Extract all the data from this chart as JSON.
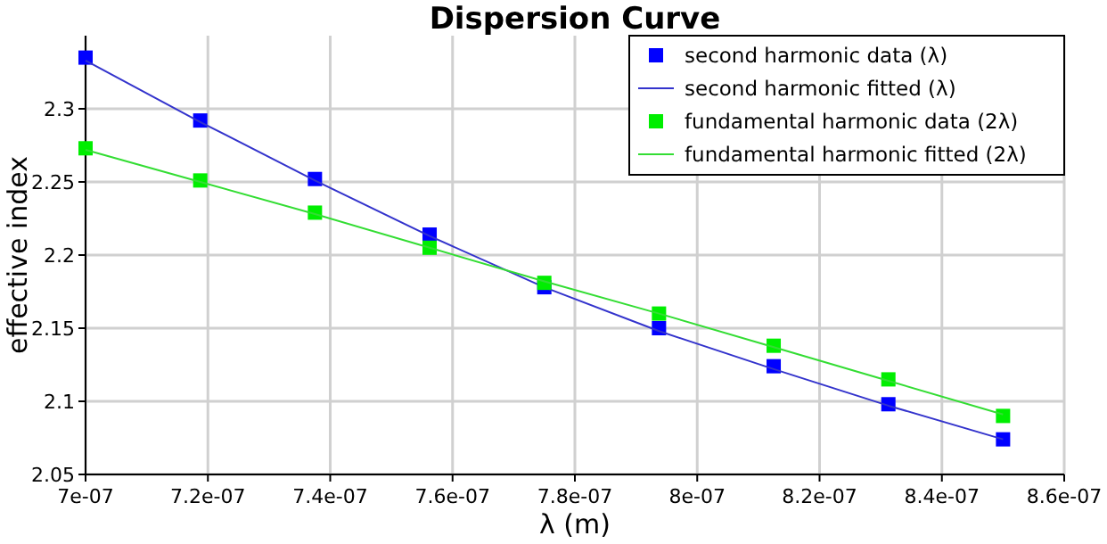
{
  "chart_data": {
    "type": "scatter",
    "title": "Dispersion Curve",
    "xlabel": "λ (m)",
    "ylabel": "effective index",
    "x": [
      7e-07,
      7.1875e-07,
      7.375e-07,
      7.5625e-07,
      7.75e-07,
      7.9375e-07,
      8.125e-07,
      8.3125e-07,
      8.5e-07
    ],
    "xlim": [
      7e-07,
      8.6e-07
    ],
    "xticks": [
      {
        "value": 7e-07,
        "label": "7e-07"
      },
      {
        "value": 7.2e-07,
        "label": "7.2e-07"
      },
      {
        "value": 7.4e-07,
        "label": "7.4e-07"
      },
      {
        "value": 7.6e-07,
        "label": "7.6e-07"
      },
      {
        "value": 7.8e-07,
        "label": "7.8e-07"
      },
      {
        "value": 8e-07,
        "label": "8e-07"
      },
      {
        "value": 8.2e-07,
        "label": "8.2e-07"
      },
      {
        "value": 8.4e-07,
        "label": "8.4e-07"
      },
      {
        "value": 8.6e-07,
        "label": "8.6e-07"
      }
    ],
    "ylim": [
      2.05,
      2.35
    ],
    "yticks": [
      2.05,
      2.1,
      2.15,
      2.2,
      2.25,
      2.3
    ],
    "grid": true,
    "legend": "top right",
    "series": [
      {
        "name": "second harmonic data (λ)",
        "marker": "square",
        "color": "#0000ff",
        "values": [
          2.335,
          2.292,
          2.252,
          2.214,
          2.178,
          2.15,
          2.124,
          2.098,
          2.074
        ]
      },
      {
        "name": "second harmonic fitted (λ)",
        "type": "line",
        "marker": "none",
        "color": "#3333cc",
        "values": [
          2.333,
          2.291,
          2.251,
          2.213,
          2.178,
          2.148,
          2.122,
          2.097,
          2.074
        ]
      },
      {
        "name": "fundamental harmonic data (2λ)",
        "marker": "square",
        "color": "#00ee00",
        "values": [
          2.273,
          2.251,
          2.229,
          2.205,
          2.181,
          2.16,
          2.138,
          2.115,
          2.09
        ]
      },
      {
        "name": "fundamental harmonic fitted (2λ)",
        "type": "line",
        "marker": "none",
        "color": "#33dd33",
        "values": [
          2.272,
          2.25,
          2.228,
          2.205,
          2.182,
          2.16,
          2.137,
          2.114,
          2.091
        ]
      }
    ]
  }
}
